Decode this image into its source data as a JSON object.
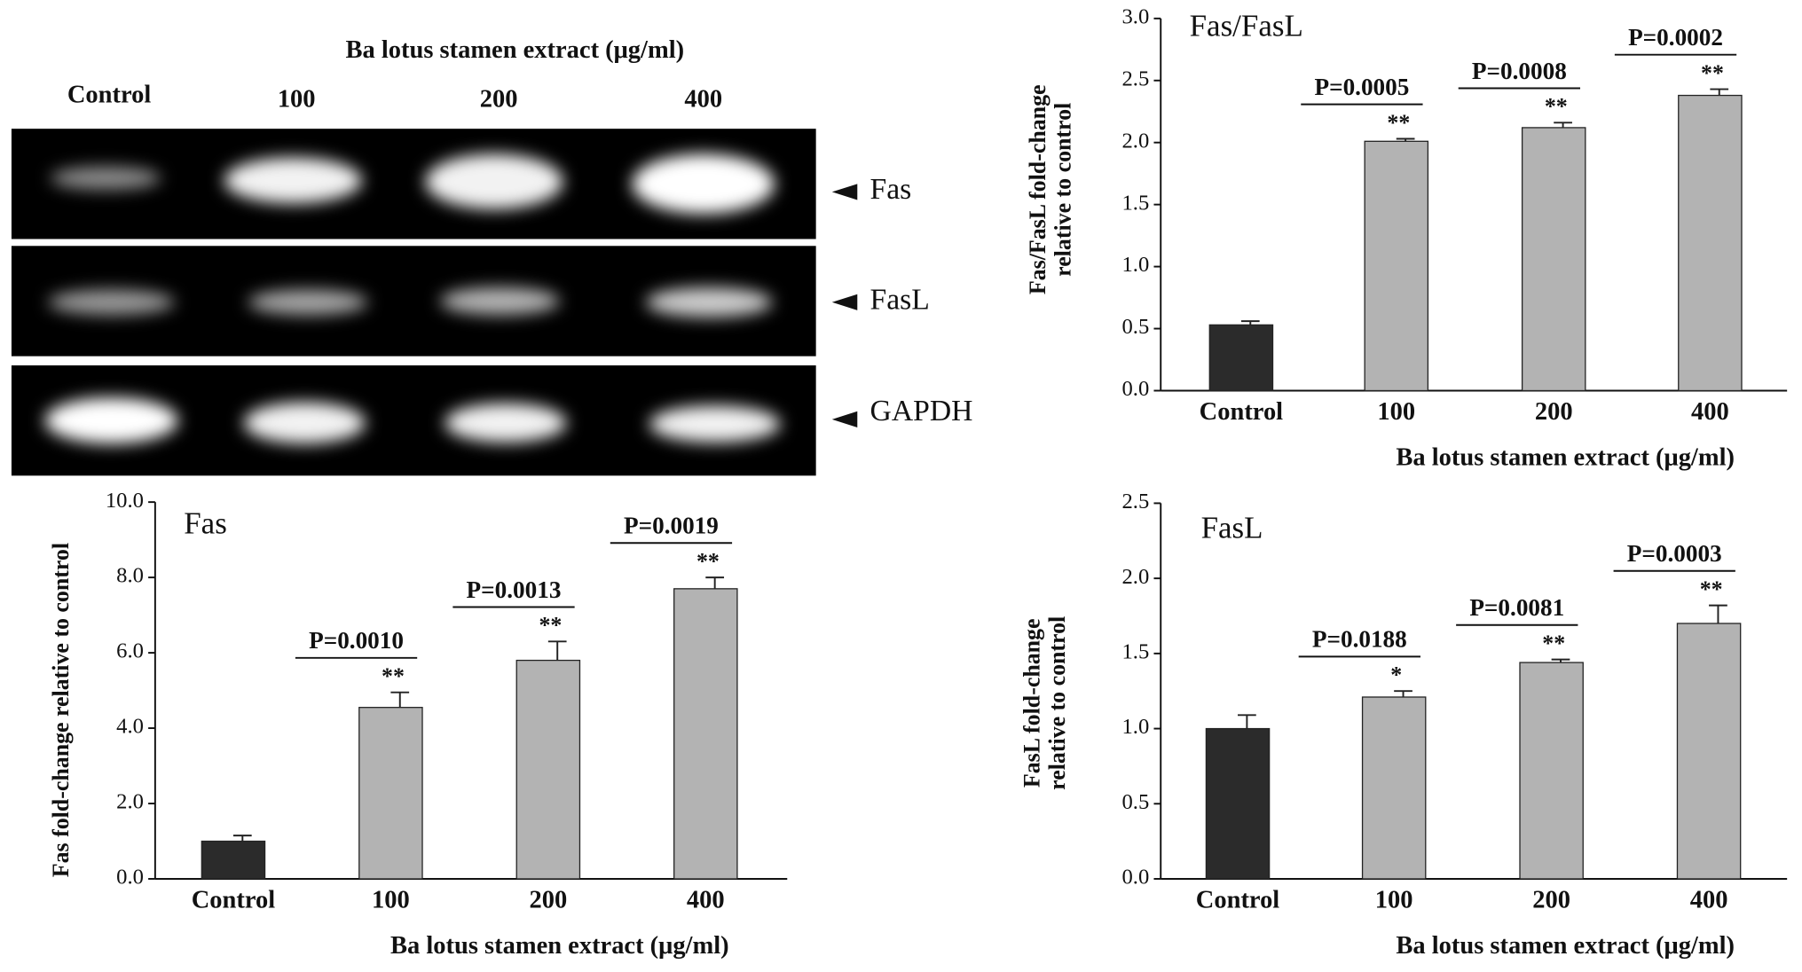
{
  "gel": {
    "title": "Ba lotus stamen extract (μg/ml)",
    "lanes": [
      "Control",
      "100",
      "200",
      "400"
    ],
    "bands": [
      "Fas",
      "FasL",
      "GAPDH"
    ]
  },
  "chart_data": [
    {
      "type": "bar",
      "title": "Fas/FasL",
      "ylabel": [
        "Fas/FasL fold-change",
        "relative to control"
      ],
      "xlabel": "Ba lotus stamen extract (μg/ml)",
      "categories": [
        "Control",
        "100",
        "200",
        "400"
      ],
      "values": [
        0.53,
        2.01,
        2.12,
        2.38
      ],
      "errors": [
        0.03,
        0.02,
        0.04,
        0.05
      ],
      "colors": [
        "#2b2b2b",
        "#b3b3b3",
        "#b3b3b3",
        "#b3b3b3"
      ],
      "significance": [
        null,
        "**",
        "**",
        "**"
      ],
      "p_values": [
        null,
        "P=0.0005",
        "P=0.0008",
        "P=0.0002"
      ],
      "ylim": [
        0,
        3
      ],
      "yticks": [
        {
          "value": 0,
          "label": "0.0"
        },
        0.5,
        {
          "value": 1,
          "label": "1.0"
        },
        1.5,
        {
          "value": 2,
          "label": "2.0"
        },
        2.5,
        {
          "value": 3,
          "label": "3.0"
        }
      ]
    },
    {
      "type": "bar",
      "title": "Fas",
      "ylabel": [
        "Fas fold-change relative to control"
      ],
      "xlabel": "Ba lotus stamen extract (μg/ml)",
      "categories": [
        "Control",
        "100",
        "200",
        "400"
      ],
      "values": [
        1.0,
        4.55,
        5.8,
        7.7
      ],
      "errors": [
        0.15,
        0.4,
        0.5,
        0.3
      ],
      "colors": [
        "#2b2b2b",
        "#b3b3b3",
        "#b3b3b3",
        "#b3b3b3"
      ],
      "significance": [
        null,
        "**",
        "**",
        "**"
      ],
      "p_values": [
        null,
        "P=0.0010",
        "P=0.0013",
        "P=0.0019"
      ],
      "ylim": [
        0,
        10
      ],
      "yticks": [
        {
          "value": 0,
          "label": "0.0"
        },
        {
          "value": 2,
          "label": "2.0"
        },
        {
          "value": 4,
          "label": "4.0"
        },
        {
          "value": 6,
          "label": "6.0"
        },
        {
          "value": 8,
          "label": "8.0"
        },
        {
          "value": 10,
          "label": "10.0"
        }
      ]
    },
    {
      "type": "bar",
      "title": "FasL",
      "ylabel": [
        "FasL fold-change",
        "relative to control"
      ],
      "xlabel": "Ba lotus stamen extract (μg/ml)",
      "categories": [
        "Control",
        "100",
        "200",
        "400"
      ],
      "values": [
        1.0,
        1.21,
        1.44,
        1.7
      ],
      "errors": [
        0.09,
        0.04,
        0.02,
        0.12
      ],
      "colors": [
        "#2b2b2b",
        "#b3b3b3",
        "#b3b3b3",
        "#b3b3b3"
      ],
      "significance": [
        null,
        "*",
        "**",
        "**"
      ],
      "p_values": [
        null,
        "P=0.0188",
        "P=0.0081",
        "P=0.0003"
      ],
      "ylim": [
        0,
        2.5
      ],
      "yticks": [
        {
          "value": 0,
          "label": "0.0"
        },
        0.5,
        {
          "value": 1,
          "label": "1.0"
        },
        1.5,
        {
          "value": 2,
          "label": "2.0"
        },
        2.5
      ]
    }
  ]
}
